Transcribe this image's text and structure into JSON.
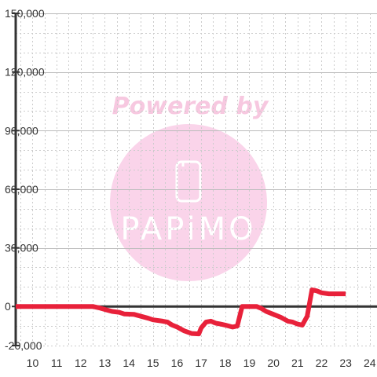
{
  "chart_data": {
    "type": "line",
    "title": "",
    "xlabel": "",
    "ylabel": "",
    "xlim": [
      9.3,
      24.3
    ],
    "ylim": [
      -20000,
      150000
    ],
    "x_ticks": [
      10,
      11,
      12,
      13,
      14,
      15,
      16,
      17,
      18,
      19,
      20,
      21,
      22,
      23,
      24
    ],
    "y_ticks": [
      -20000,
      0,
      30000,
      60000,
      90000,
      120000,
      150000
    ],
    "x_tick_labels": [
      "10",
      "11",
      "12",
      "13",
      "14",
      "15",
      "16",
      "17",
      "18",
      "19",
      "20",
      "21",
      "22",
      "23",
      "24"
    ],
    "y_tick_labels": [
      "-20,000",
      "0",
      "30,000",
      "60,000",
      "90,000",
      "120,000",
      "150,000"
    ],
    "grid": true,
    "legend": "none",
    "series": [
      {
        "color": "#e8213a",
        "x": [
          9.3,
          10.0,
          11.0,
          12.0,
          12.5,
          12.8,
          13.0,
          13.3,
          13.6,
          13.8,
          14.2,
          14.5,
          14.8,
          15.0,
          15.4,
          15.6,
          15.8,
          16.0,
          16.3,
          16.6,
          16.9,
          17.0,
          17.2,
          17.4,
          17.6,
          17.8,
          18.0,
          18.3,
          18.5,
          18.7,
          18.9,
          19.3,
          19.5,
          19.7,
          20.0,
          20.3,
          20.6,
          20.8,
          21.0,
          21.2,
          21.4,
          21.6,
          21.8,
          22.0,
          22.3,
          23.0
        ],
        "y": [
          0,
          0,
          0,
          0,
          0,
          -800,
          -1500,
          -2500,
          -3000,
          -3800,
          -4000,
          -5000,
          -6000,
          -6800,
          -7500,
          -8000,
          -9500,
          -10500,
          -12500,
          -13800,
          -14000,
          -11000,
          -8000,
          -7500,
          -8500,
          -9000,
          -9500,
          -10500,
          -10000,
          0,
          0,
          0,
          -1000,
          -2500,
          -4000,
          -5500,
          -7500,
          -8000,
          -9000,
          -9500,
          -5000,
          8500,
          8000,
          7000,
          6500,
          6500
        ]
      }
    ]
  },
  "watermark": {
    "line1": "Powered by",
    "line2": "PAPiMO",
    "text_color": "#f7c8e0",
    "circle_color": "#fad4ea"
  },
  "style": {
    "axis_color": "#333333",
    "grid_major_color": "#bbbbbb",
    "grid_minor_color": "#cccccc",
    "line_color": "#e8213a"
  }
}
